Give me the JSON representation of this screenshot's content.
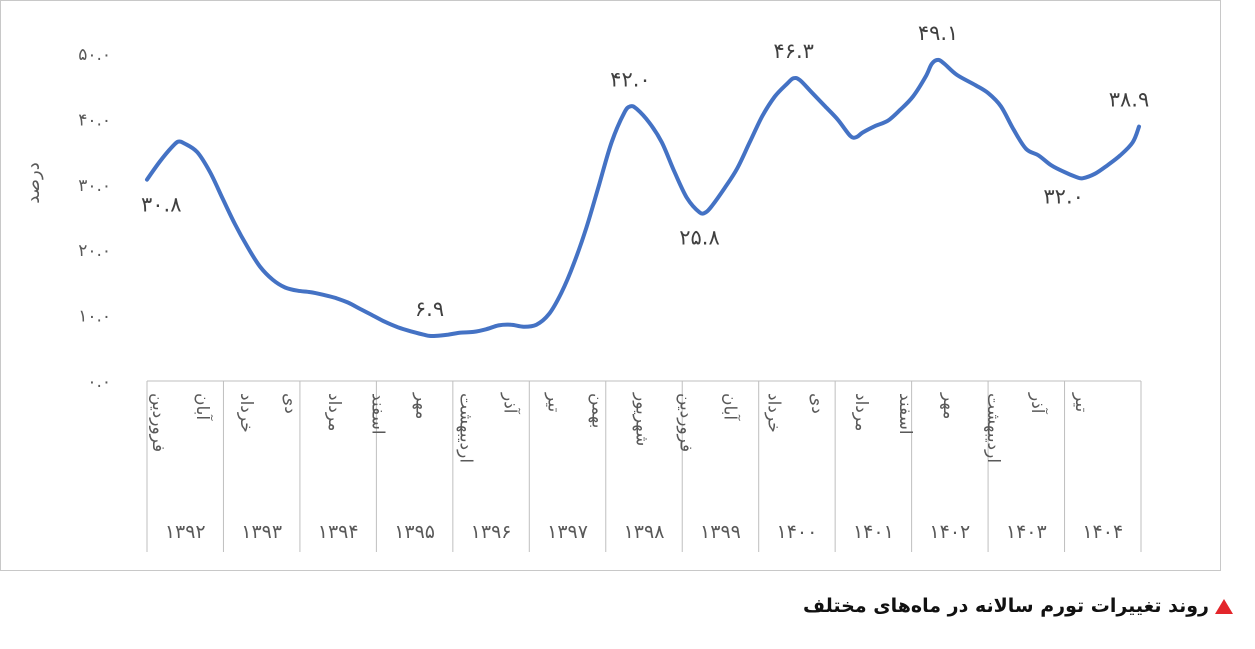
{
  "chart_data": {
    "type": "line",
    "title": "",
    "ylabel": "درصد",
    "xlabel": "",
    "ylim": [
      0,
      50
    ],
    "y_ticks": [
      "۰.۰",
      "۱۰.۰",
      "۲۰.۰",
      "۳۰.۰",
      "۴۰.۰",
      "۵۰.۰"
    ],
    "y_tick_values": [
      0,
      10,
      20,
      30,
      40,
      50
    ],
    "grid": false,
    "line_color": "#4472c4",
    "years": [
      "۱۳۹۲",
      "۱۳۹۳",
      "۱۳۹۴",
      "۱۳۹۵",
      "۱۳۹۶",
      "۱۳۹۷",
      "۱۳۹۸",
      "۱۳۹۹",
      "۱۴۰۰",
      "۱۴۰۱",
      "۱۴۰۲",
      "۱۴۰۳",
      "۱۴۰۴"
    ],
    "month_labels": [
      {
        "text": "فروردین",
        "index": 0
      },
      {
        "text": "آبان",
        "index": 7
      },
      {
        "text": "خرداد",
        "index": 14
      },
      {
        "text": "دی",
        "index": 21
      },
      {
        "text": "مرداد",
        "index": 28
      },
      {
        "text": "اسفند",
        "index": 35
      },
      {
        "text": "مهر",
        "index": 42
      },
      {
        "text": "اردیبهشت",
        "index": 49
      },
      {
        "text": "آذر",
        "index": 56
      },
      {
        "text": "تیر",
        "index": 63
      },
      {
        "text": "بهمن",
        "index": 70
      },
      {
        "text": "شهریور",
        "index": 77
      },
      {
        "text": "فروردین",
        "index": 84
      },
      {
        "text": "آبان",
        "index": 91
      },
      {
        "text": "خرداد",
        "index": 98
      },
      {
        "text": "دی",
        "index": 105
      },
      {
        "text": "مرداد",
        "index": 112
      },
      {
        "text": "اسفند",
        "index": 119
      },
      {
        "text": "مهر",
        "index": 126
      },
      {
        "text": "اردیبهشت",
        "index": 133
      },
      {
        "text": "آذر",
        "index": 140
      },
      {
        "text": "تیر",
        "index": 147
      }
    ],
    "series": [
      {
        "points": [
          [
            0,
            30.8
          ],
          [
            2,
            33.5
          ],
          [
            4,
            35.8
          ],
          [
            5,
            36.6
          ],
          [
            6,
            36.3
          ],
          [
            8,
            35.0
          ],
          [
            10,
            32.0
          ],
          [
            12,
            28.0
          ],
          [
            14,
            24.0
          ],
          [
            16,
            20.5
          ],
          [
            18,
            17.5
          ],
          [
            20,
            15.5
          ],
          [
            22,
            14.3
          ],
          [
            24,
            13.8
          ],
          [
            26,
            13.6
          ],
          [
            28,
            13.2
          ],
          [
            30,
            12.7
          ],
          [
            32,
            12.0
          ],
          [
            34,
            11.0
          ],
          [
            36,
            10.0
          ],
          [
            38,
            9.0
          ],
          [
            40,
            8.2
          ],
          [
            42,
            7.6
          ],
          [
            44,
            7.1
          ],
          [
            45,
            6.9
          ],
          [
            46,
            6.9
          ],
          [
            48,
            7.1
          ],
          [
            50,
            7.4
          ],
          [
            52,
            7.5
          ],
          [
            54,
            7.9
          ],
          [
            56,
            8.5
          ],
          [
            58,
            8.6
          ],
          [
            60,
            8.3
          ],
          [
            62,
            8.6
          ],
          [
            64,
            10.2
          ],
          [
            66,
            13.5
          ],
          [
            68,
            18.0
          ],
          [
            70,
            23.5
          ],
          [
            72,
            30.0
          ],
          [
            74,
            36.5
          ],
          [
            76,
            41.0
          ],
          [
            77,
            42.0
          ],
          [
            78,
            41.6
          ],
          [
            80,
            39.5
          ],
          [
            82,
            36.5
          ],
          [
            84,
            32.0
          ],
          [
            86,
            28.0
          ],
          [
            88,
            25.8
          ],
          [
            89,
            25.8
          ],
          [
            90,
            26.8
          ],
          [
            92,
            29.5
          ],
          [
            94,
            32.5
          ],
          [
            96,
            36.5
          ],
          [
            98,
            40.5
          ],
          [
            100,
            43.5
          ],
          [
            102,
            45.5
          ],
          [
            103,
            46.3
          ],
          [
            104,
            46.0
          ],
          [
            106,
            44.0
          ],
          [
            108,
            42.0
          ],
          [
            110,
            40.0
          ],
          [
            112,
            37.5
          ],
          [
            113,
            37.3
          ],
          [
            114,
            38.0
          ],
          [
            116,
            39.0
          ],
          [
            118,
            39.8
          ],
          [
            120,
            41.5
          ],
          [
            122,
            43.5
          ],
          [
            124,
            46.5
          ],
          [
            125,
            48.5
          ],
          [
            126,
            49.1
          ],
          [
            127,
            48.5
          ],
          [
            129,
            46.8
          ],
          [
            132,
            45.2
          ],
          [
            134,
            44.0
          ],
          [
            136,
            42.0
          ],
          [
            138,
            38.5
          ],
          [
            140,
            35.5
          ],
          [
            142,
            34.5
          ],
          [
            144,
            33.0
          ],
          [
            146,
            32.0
          ],
          [
            148,
            31.2
          ],
          [
            149,
            31.0
          ],
          [
            151,
            31.7
          ],
          [
            153,
            33.0
          ],
          [
            155,
            34.5
          ],
          [
            157,
            36.5
          ],
          [
            158,
            38.9
          ]
        ]
      }
    ],
    "annotations": [
      {
        "text": "۳۰.۸",
        "index": 0,
        "value": 30.8,
        "position": "below"
      },
      {
        "text": "۶.۹",
        "index": 45,
        "value": 6.9,
        "position": "above"
      },
      {
        "text": "۴۲.۰",
        "index": 77,
        "value": 42.0,
        "position": "above"
      },
      {
        "text": "۲۵.۸",
        "index": 88,
        "value": 25.8,
        "position": "below"
      },
      {
        "text": "۴۶.۳",
        "index": 103,
        "value": 46.3,
        "position": "above"
      },
      {
        "text": "۴۹.۱",
        "index": 126,
        "value": 49.1,
        "position": "above"
      },
      {
        "text": "۳۲.۰",
        "index": 146,
        "value": 32.0,
        "position": "below"
      },
      {
        "text": "۳۸.۹",
        "index": 158,
        "value": 38.9,
        "position": "above"
      }
    ]
  },
  "caption": {
    "text": "روند تغییرات تورم سالانه در ماه‌های مختلف",
    "marker_color": "#e3262b"
  }
}
